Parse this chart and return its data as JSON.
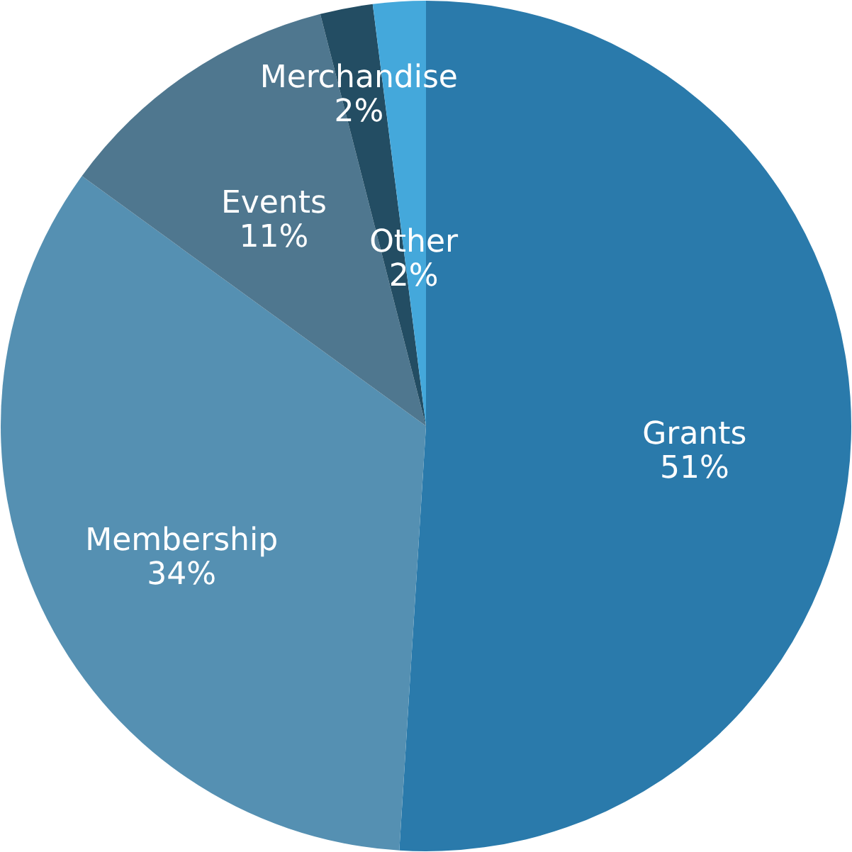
{
  "chart_data": {
    "type": "pie",
    "categories": [
      "Grants",
      "Membership",
      "Events",
      "Merchandise",
      "Other"
    ],
    "values": [
      51,
      34,
      11,
      2,
      2
    ],
    "value_labels": [
      "51%",
      "34%",
      "11%",
      "2%",
      "2%"
    ],
    "colors": [
      "#2a7aab",
      "#5590b2",
      "#4f778f",
      "#234d63",
      "#44a8db"
    ]
  }
}
